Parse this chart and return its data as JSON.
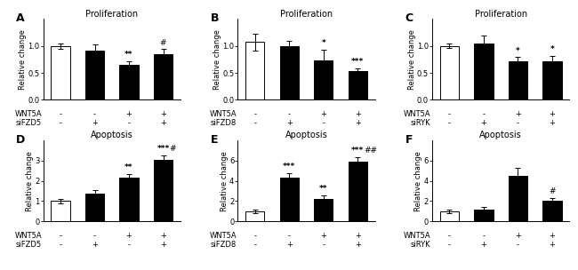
{
  "panels": [
    {
      "label": "A",
      "title": "Proliferation",
      "ylabel": "Relative change",
      "ylim": [
        0,
        1.5
      ],
      "yticks": [
        0.0,
        0.5,
        1.0
      ],
      "xticklabels_row1": [
        "WNT5A",
        "-",
        "-",
        "+",
        "+"
      ],
      "xticklabels_row2": [
        "siFZD5",
        "-",
        "+",
        "-",
        "+"
      ],
      "values": [
        1.0,
        0.92,
        0.65,
        0.84
      ],
      "errors": [
        0.05,
        0.1,
        0.07,
        0.1
      ],
      "colors": [
        "white",
        "black",
        "black",
        "black"
      ],
      "significance": [
        "",
        "",
        "**",
        "#"
      ],
      "extra_sig": [
        "",
        "",
        "",
        ""
      ],
      "sig_is_hash": [
        false,
        false,
        false,
        true
      ]
    },
    {
      "label": "B",
      "title": "Proliferation",
      "ylabel": "Relative change",
      "ylim": [
        0,
        1.5
      ],
      "yticks": [
        0.0,
        0.5,
        1.0
      ],
      "xticklabels_row1": [
        "WNT5A",
        "-",
        "-",
        "+",
        "+"
      ],
      "xticklabels_row2": [
        "siFZD8",
        "-",
        "+",
        "-",
        "+"
      ],
      "values": [
        1.07,
        1.0,
        0.73,
        0.53
      ],
      "errors": [
        0.15,
        0.1,
        0.2,
        0.06
      ],
      "colors": [
        "white",
        "black",
        "black",
        "black"
      ],
      "significance": [
        "",
        "",
        "*",
        "***"
      ],
      "extra_sig": [
        "",
        "",
        "",
        ""
      ],
      "sig_is_hash": [
        false,
        false,
        false,
        false
      ]
    },
    {
      "label": "C",
      "title": "Proliferation",
      "ylabel": "Relative change",
      "ylim": [
        0,
        1.5
      ],
      "yticks": [
        0.0,
        0.5,
        1.0
      ],
      "xticklabels_row1": [
        "WNT5A",
        "-",
        "-",
        "+",
        "+"
      ],
      "xticklabels_row2": [
        "siRYK",
        "-",
        "+",
        "-",
        "+"
      ],
      "values": [
        1.0,
        1.05,
        0.71,
        0.71
      ],
      "errors": [
        0.04,
        0.15,
        0.08,
        0.1
      ],
      "colors": [
        "white",
        "black",
        "black",
        "black"
      ],
      "significance": [
        "",
        "",
        "*",
        "*"
      ],
      "extra_sig": [
        "",
        "",
        "",
        ""
      ],
      "sig_is_hash": [
        false,
        false,
        false,
        false
      ]
    },
    {
      "label": "D",
      "title": "Apoptosis",
      "ylabel": "Relative change",
      "ylim": [
        0,
        4
      ],
      "yticks": [
        0,
        1,
        2,
        3
      ],
      "xticklabels_row1": [
        "WNT5A",
        "-",
        "-",
        "+",
        "+"
      ],
      "xticklabels_row2": [
        "siFZD5",
        "-",
        "+",
        "-",
        "+"
      ],
      "values": [
        1.0,
        1.35,
        2.15,
        3.05
      ],
      "errors": [
        0.1,
        0.18,
        0.2,
        0.22
      ],
      "colors": [
        "white",
        "black",
        "black",
        "black"
      ],
      "significance": [
        "",
        "",
        "**",
        "***"
      ],
      "extra_sig": [
        "",
        "",
        "",
        "#"
      ],
      "sig_is_hash": [
        false,
        false,
        false,
        false
      ]
    },
    {
      "label": "E",
      "title": "Apoptosis",
      "ylabel": "Relative change",
      "ylim": [
        0,
        8
      ],
      "yticks": [
        0,
        2,
        4,
        6
      ],
      "xticklabels_row1": [
        "WNT5A",
        "-",
        "-",
        "+",
        "+"
      ],
      "xticklabels_row2": [
        "siFZD8",
        "-",
        "+",
        "-",
        "+"
      ],
      "values": [
        1.0,
        4.3,
        2.2,
        5.9
      ],
      "errors": [
        0.15,
        0.45,
        0.4,
        0.45
      ],
      "colors": [
        "white",
        "black",
        "black",
        "black"
      ],
      "significance": [
        "",
        "***",
        "**",
        "***"
      ],
      "extra_sig": [
        "",
        "",
        "",
        "##"
      ],
      "sig_is_hash": [
        false,
        false,
        false,
        false
      ]
    },
    {
      "label": "F",
      "title": "Apoptosis",
      "ylabel": "Relative change",
      "ylim": [
        0,
        8
      ],
      "yticks": [
        0,
        2,
        4,
        6
      ],
      "xticklabels_row1": [
        "WNT5A",
        "-",
        "-",
        "+",
        "+"
      ],
      "xticklabels_row2": [
        "siRYK",
        "-",
        "+",
        "-",
        "+"
      ],
      "values": [
        1.0,
        1.2,
        4.5,
        2.0
      ],
      "errors": [
        0.15,
        0.2,
        0.8,
        0.3
      ],
      "colors": [
        "white",
        "black",
        "black",
        "black"
      ],
      "significance": [
        "",
        "",
        "",
        "#"
      ],
      "extra_sig": [
        "",
        "",
        "",
        ""
      ],
      "sig_is_hash": [
        false,
        false,
        false,
        true
      ]
    }
  ],
  "bar_width": 0.55,
  "edgecolor": "black",
  "capsize": 2,
  "error_color": "black",
  "fontsize_title": 7,
  "fontsize_ylabel": 6,
  "fontsize_tick": 6,
  "fontsize_sig": 6.5,
  "fontsize_panel_label": 9,
  "fontsize_xlabel": 6
}
